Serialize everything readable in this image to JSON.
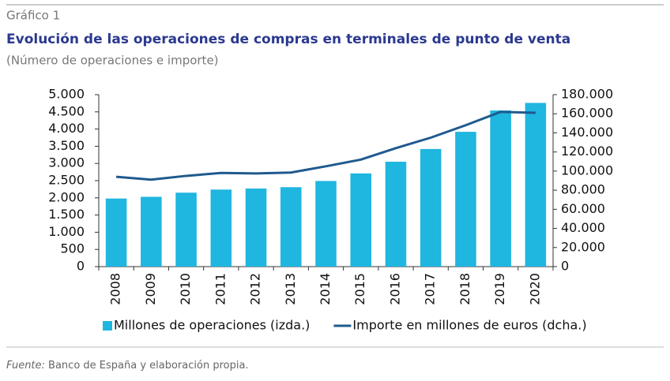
{
  "chart_data": {
    "type": "bar",
    "label": "Gráfico 1",
    "title": "Evolución de las operaciones de compras en terminales de punto de venta",
    "subtitle": "(Número de operaciones e importe)",
    "source_label": "Fuente:",
    "source_text": "Banco de España y elaboración propia.",
    "categories": [
      "2008",
      "2009",
      "2010",
      "2011",
      "2012",
      "2013",
      "2014",
      "2015",
      "2016",
      "2017",
      "2018",
      "2019",
      "2020"
    ],
    "series": [
      {
        "name": "Millones de operaciones (izda.)",
        "type": "bar",
        "color": "#1fb6e0",
        "axis": "y",
        "values": [
          1980,
          2030,
          2150,
          2240,
          2270,
          2310,
          2490,
          2710,
          3050,
          3420,
          3920,
          4540,
          4760
        ]
      },
      {
        "name": "Importe en millones de euros (dcha.)",
        "type": "line",
        "color": "#1f5a8e",
        "axis": "y2",
        "values": [
          94000,
          91000,
          95000,
          98000,
          97500,
          98500,
          105000,
          112000,
          124000,
          135000,
          148000,
          162000,
          161000
        ]
      }
    ],
    "ylim": [
      0,
      5000
    ],
    "yticks": [
      0,
      500,
      {
        "value": 1000,
        "label": "1.000"
      },
      {
        "value": 1500,
        "label": "1.500"
      },
      {
        "value": 2000,
        "label": "2.000"
      },
      {
        "value": 2500,
        "label": "2.500"
      },
      {
        "value": 3000,
        "label": "3.000"
      },
      {
        "value": 3500,
        "label": "3.500"
      },
      {
        "value": 4000,
        "label": "4.000"
      },
      {
        "value": 4500,
        "label": "4.500"
      },
      {
        "value": 5000,
        "label": "5.000"
      }
    ],
    "y2lim": [
      0,
      180000
    ],
    "y2ticks": [
      0,
      {
        "value": 20000,
        "label": "20.000"
      },
      {
        "value": 40000,
        "label": "40.000"
      },
      {
        "value": 60000,
        "label": "60.000"
      },
      {
        "value": 80000,
        "label": "80.000"
      },
      {
        "value": 100000,
        "label": "100.000"
      },
      {
        "value": 120000,
        "label": "120.000"
      },
      {
        "value": 140000,
        "label": "140.000"
      },
      {
        "value": 160000,
        "label": "160.000"
      },
      {
        "value": 180000,
        "label": "180.000"
      }
    ],
    "grid": false
  }
}
